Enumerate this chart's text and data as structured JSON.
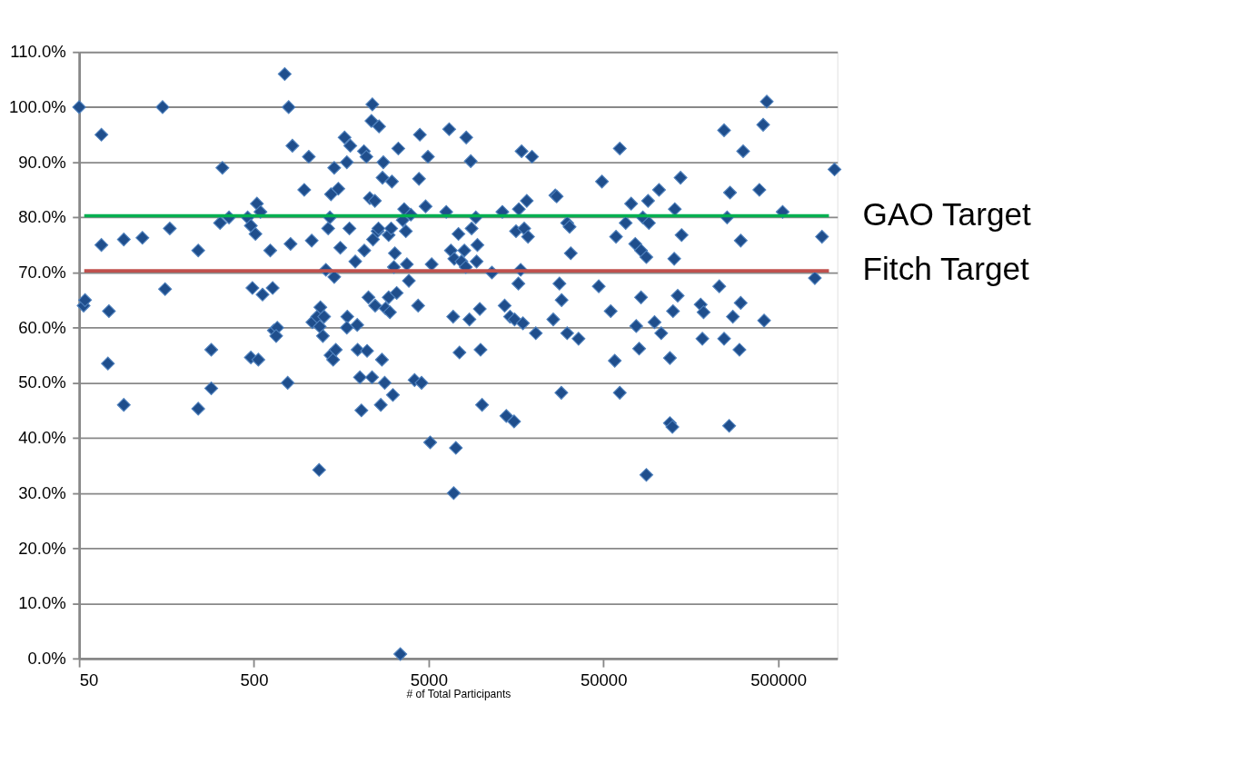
{
  "chart_data": {
    "type": "scatter",
    "xlabel": "# of Total Participants",
    "log": "x",
    "grid": "y",
    "marker": "diamond",
    "xlim": [
      50,
      1090000
    ],
    "xticks": [
      50,
      500,
      5000,
      50000,
      500000
    ],
    "ylim": [
      0,
      110
    ],
    "yticks": [
      {
        "value": 0,
        "label": "0.0%"
      },
      {
        "value": 10,
        "label": "10.0%"
      },
      {
        "value": 20,
        "label": "20.0%"
      },
      {
        "value": 30,
        "label": "30.0%"
      },
      {
        "value": 40,
        "label": "40.0%"
      },
      {
        "value": 50,
        "label": "50.0%"
      },
      {
        "value": 60,
        "label": "60.0%"
      },
      {
        "value": 70,
        "label": "70.0%"
      },
      {
        "value": 80,
        "label": "80.0%"
      },
      {
        "value": 90,
        "label": "90.0%"
      },
      {
        "value": 100,
        "label": "100.0%"
      },
      {
        "value": 110,
        "label": "110.0%"
      }
    ],
    "ref_lines": [
      {
        "axis": "y",
        "value": 80.3,
        "label": "GAO Target",
        "color": "#00b050"
      },
      {
        "axis": "y",
        "value": 70.3,
        "label": "Fitch Target",
        "color": "#c0504d"
      }
    ],
    "series": [
      {
        "color": "#1f4e8c",
        "x": [
          50,
          53,
          54,
          67,
          67,
          74,
          73,
          90,
          90,
          115,
          150,
          155,
          165,
          240,
          240,
          285,
          285,
          320,
          330,
          360,
          460,
          480,
          490,
          480,
          510,
          520,
          530,
          545,
          560,
          620,
          640,
          650,
          680,
          670,
          750,
          790,
          780,
          810,
          830,
          970,
          1030,
          1080,
          1070,
          1150,
          1190,
          1180,
          1200,
          1240,
          1260,
          1290,
          1330,
          1360,
          1370,
          1380,
          1420,
          1440,
          1440,
          1470,
          1520,
          1560,
          1650,
          1700,
          1710,
          1700,
          1760,
          1780,
          1900,
          1950,
          1960,
          2020,
          2060,
          2130,
          2140,
          2200,
          2220,
          2260,
          2300,
          2350,
          2380,
          2370,
          2400,
          2460,
          2470,
          2550,
          2600,
          2580,
          2660,
          2700,
          2720,
          2750,
          2830,
          2800,
          2950,
          2950,
          3000,
          3050,
          3080,
          3120,
          3160,
          3200,
          3280,
          3350,
          3440,
          3550,
          3620,
          3700,
          3750,
          3850,
          3950,
          4150,
          4350,
          4400,
          4450,
          4550,
          4800,
          4950,
          5100,
          5200,
          6300,
          6550,
          6700,
          6900,
          7000,
          6950,
          7150,
          7400,
          7500,
          7700,
          8000,
          8200,
          8150,
          8550,
          8700,
          8800,
          9300,
          9400,
          9500,
          9900,
          9800,
          10100,
          11500,
          13200,
          13600,
          13900,
          14600,
          15500,
          15800,
          15400,
          16400,
          16300,
          17000,
          16800,
          17300,
          17600,
          18200,
          18500,
          19500,
          20500,
          25800,
          26500,
          27000,
          28000,
          28800,
          28700,
          31000,
          31000,
          32500,
          32000,
          36000,
          47000,
          49000,
          55000,
          58000,
          59000,
          62000,
          62000,
          67000,
          72000,
          76000,
          77000,
          80000,
          82000,
          82000,
          84000,
          88000,
          88000,
          91000,
          90000,
          98000,
          104000,
          107000,
          120000,
          124000,
          120000,
          125000,
          127000,
          128000,
          133000,
          138000,
          140000,
          180000,
          184000,
          187000,
          230000,
          245000,
          245000,
          255000,
          262000,
          265000,
          275000,
          300000,
          305000,
          305000,
          315000,
          390000,
          410000,
          415000,
          430000,
          530000,
          810000,
          890000,
          1050000
        ],
        "values": [
          100,
          64,
          65,
          95,
          75,
          63,
          53.5,
          76,
          46,
          76.3,
          100,
          67,
          78,
          74,
          45.3,
          56,
          49,
          79,
          89,
          80,
          80,
          78.5,
          67.2,
          54.6,
          77,
          82.5,
          54.2,
          81,
          66,
          74,
          67.2,
          59.5,
          60,
          58.5,
          106,
          100,
          50,
          75.2,
          93,
          85,
          91,
          61,
          75.8,
          62,
          60.2,
          34.2,
          63.7,
          58.5,
          62,
          70.5,
          78,
          80,
          55,
          84.2,
          54.2,
          89,
          69.2,
          56,
          85.2,
          74.5,
          94.5,
          90,
          62,
          60,
          78,
          93,
          72,
          60.5,
          56,
          51,
          45,
          92,
          74,
          91,
          55.8,
          65.5,
          83.5,
          97.5,
          100.5,
          51,
          76,
          83,
          64,
          77.5,
          96.5,
          78,
          46,
          54.2,
          87.2,
          90,
          63.5,
          50,
          76.8,
          65.5,
          62.8,
          78,
          86.5,
          47.8,
          71,
          73.5,
          66.3,
          92.5,
          0.8,
          79.5,
          81.5,
          77.5,
          71.5,
          68.5,
          80.5,
          50.5,
          64,
          87,
          95,
          50,
          82,
          91,
          39.2,
          71.5,
          81,
          96,
          74,
          62,
          72.5,
          30,
          38.2,
          77,
          55.5,
          72,
          74,
          94.5,
          71,
          61.5,
          90.2,
          78,
          80,
          72,
          75,
          56,
          63.4,
          46,
          70,
          81,
          64,
          44,
          62,
          61.5,
          77.5,
          43,
          81.5,
          68,
          92,
          70.5,
          60.8,
          78,
          83,
          76.5,
          91,
          59,
          61.5,
          84,
          83.8,
          68,
          65,
          48.2,
          79,
          59,
          73.5,
          78.3,
          58,
          67.5,
          86.5,
          63,
          54,
          76.5,
          48.2,
          92.5,
          79,
          82.5,
          75.2,
          60.3,
          56.2,
          65.5,
          74,
          80,
          33.3,
          72.8,
          79,
          83,
          61,
          85,
          59,
          42.7,
          42,
          54.5,
          63,
          72.5,
          81.5,
          65.8,
          87.2,
          76.8,
          64.2,
          58,
          62.8,
          67.5,
          95.8,
          58,
          80,
          42.2,
          84.5,
          62,
          56,
          64.5,
          75.8,
          92,
          85,
          96.8,
          61.3,
          101,
          81,
          69,
          76.5,
          88.7
        ]
      }
    ]
  }
}
